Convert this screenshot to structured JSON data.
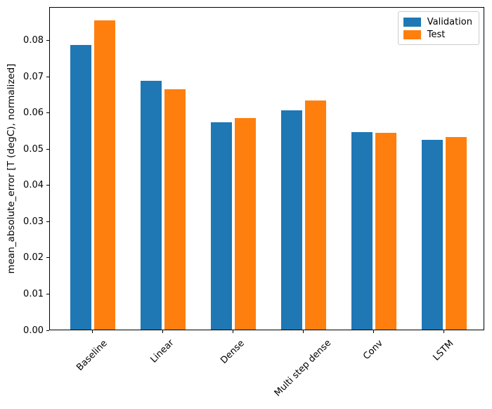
{
  "chart_data": {
    "type": "bar",
    "title": "",
    "xlabel": "",
    "ylabel": "mean_absolute_error [T (degC), normalized]",
    "categories": [
      "Baseline",
      "Linear",
      "Dense",
      "Multi step dense",
      "Conv",
      "LSTM"
    ],
    "series": [
      {
        "name": "Validation",
        "color": "#1f77b4",
        "values": [
          0.0785,
          0.0686,
          0.0572,
          0.0605,
          0.0545,
          0.0523
        ]
      },
      {
        "name": "Test",
        "color": "#ff7f0e",
        "values": [
          0.0853,
          0.0663,
          0.0583,
          0.0632,
          0.0543,
          0.0532
        ]
      }
    ],
    "ylim": [
      0,
      0.0892
    ],
    "yticks": [
      "0.00",
      "0.01",
      "0.02",
      "0.03",
      "0.04",
      "0.05",
      "0.06",
      "0.07",
      "0.08"
    ],
    "xtick_rotation": 45,
    "grid": false,
    "legend_position": "upper right",
    "bar_width_fraction": 0.3
  }
}
